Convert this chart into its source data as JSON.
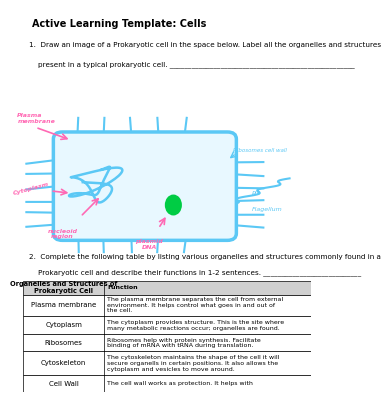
{
  "title": "Active Learning Template: Cells",
  "q1_line1": "1.  Draw an image of a Prokaryotic cell in the space below. Label all the organelles and structures",
  "q1_line2": "    present in a typical prokaryotic cell. ___________________________________________________",
  "q2_line1": "2.  Complete the following table by listing various organelles and structures commonly found in a",
  "q2_line2": "    Prokaryotic cell and describe their functions in 1-2 sentences. ___________________________",
  "table_headers": [
    "Organelles and Structures of\nProkaryotic Cell",
    "Function"
  ],
  "table_rows": [
    [
      "Plasma membrane",
      "The plasma membrane separates the cell from external\nenvironment. It helps control what goes in and out of\nthe cell."
    ],
    [
      "Cytoplasm",
      "The cytoplasm provides structure. This is the site where\nmany metabolic reactions occur; organelles are found."
    ],
    [
      "Ribosomes",
      "Ribosomes help with protein synthesis. Facilitate\nbinding of mRNA with tRNA during translation."
    ],
    [
      "Cytoskeleton",
      "The cytoskeleton maintains the shape of the cell it will\nsecure organells in certain positions. It also allows the\ncytoplasm and vesicles to move around."
    ],
    [
      "Cell Wall",
      "The cell wall works as protection. It helps with"
    ]
  ],
  "bg_color": "#ffffff",
  "cell_color": "#5bc8f5",
  "label_color_pink": "#ff69b4",
  "label_color_blue": "#5bc8f5",
  "green_color": "#00cc44",
  "cell_face": "#e8f8ff",
  "header_face": "#d0d0d0"
}
